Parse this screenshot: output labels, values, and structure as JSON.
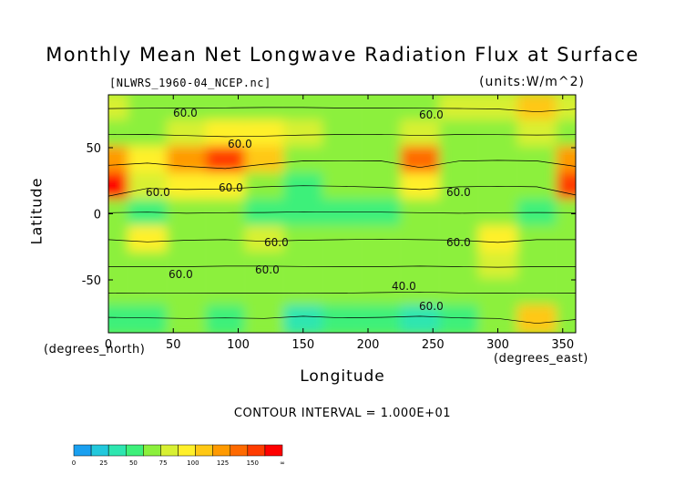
{
  "chart_data": {
    "type": "heatmap",
    "title": "Monthly Mean Net Longwave Radiation Flux at Surface",
    "subtitle_left": "[NLWRS_1960-04_NCEP.nc]",
    "subtitle_right": "(units:W/m^2)",
    "xlabel": "Longitude",
    "ylabel": "Latitude",
    "x_unit": "(degrees_east)",
    "y_unit": "(degrees_north)",
    "xlim": [
      0,
      360
    ],
    "ylim": [
      -90,
      90
    ],
    "x_ticks": [
      0,
      50,
      100,
      150,
      200,
      250,
      300,
      350
    ],
    "y_ticks": [
      50,
      0,
      -50
    ],
    "contour_interval_text": "CONTOUR INTERVAL = 1.000E+01",
    "contour_labels": [
      "60.0",
      "60.0",
      "60.0",
      "60.0",
      "60.0",
      "60.0",
      "60.0",
      "60.0",
      "60.0",
      "60.0",
      "40.0",
      "60.0"
    ],
    "colorbar": {
      "tick_labels": [
        "0",
        "25",
        "50",
        "75",
        "100",
        "125",
        "150",
        "∞"
      ],
      "colors": [
        "#1aa0f0",
        "#22c8dc",
        "#2ee6b0",
        "#3ef07a",
        "#8cf03c",
        "#d8f032",
        "#fff02a",
        "#ffc814",
        "#ff9a00",
        "#ff6a00",
        "#ff3c00",
        "#ff0000"
      ]
    },
    "value_grid": {
      "lon": [
        0,
        30,
        60,
        90,
        120,
        150,
        180,
        210,
        240,
        270,
        300,
        330,
        360
      ],
      "lat": [
        80,
        60,
        40,
        20,
        0,
        -20,
        -40,
        -60,
        -80
      ],
      "values": [
        [
          65,
          62,
          60,
          58,
          55,
          55,
          60,
          60,
          62,
          64,
          68,
          95,
          70
        ],
        [
          62,
          60,
          70,
          80,
          75,
          65,
          60,
          58,
          70,
          60,
          62,
          65,
          62
        ],
        [
          100,
          80,
          110,
          130,
          90,
          60,
          62,
          60,
          120,
          62,
          55,
          60,
          110
        ],
        [
          140,
          70,
          80,
          75,
          55,
          45,
          50,
          60,
          80,
          55,
          50,
          55,
          130
        ],
        [
          50,
          45,
          55,
          50,
          48,
          42,
          45,
          45,
          50,
          55,
          50,
          48,
          50
        ],
        [
          55,
          75,
          60,
          55,
          70,
          60,
          55,
          50,
          55,
          60,
          80,
          55,
          55
        ],
        [
          60,
          60,
          60,
          55,
          55,
          58,
          60,
          60,
          55,
          60,
          65,
          60,
          60
        ],
        [
          60,
          58,
          62,
          60,
          60,
          58,
          60,
          55,
          50,
          58,
          60,
          62,
          60
        ],
        [
          40,
          45,
          50,
          45,
          50,
          30,
          45,
          40,
          30,
          45,
          50,
          95,
          60
        ]
      ]
    }
  }
}
